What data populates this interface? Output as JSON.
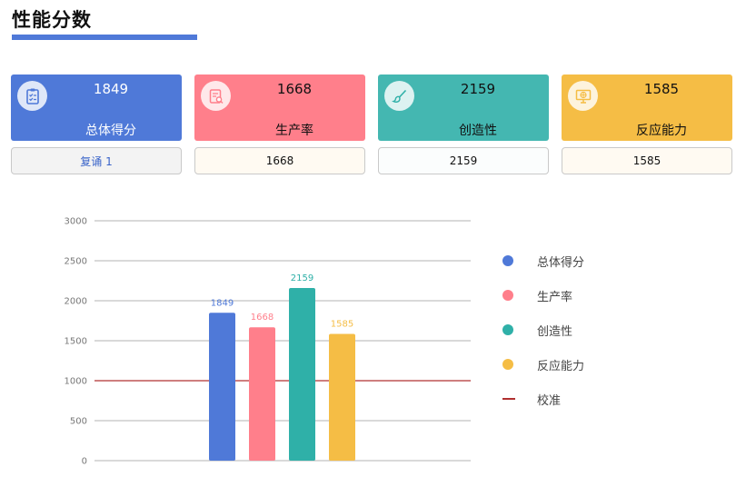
{
  "page": {
    "title": "性能分数"
  },
  "cards": [
    {
      "value": "1849",
      "label": "总体得分",
      "icon": "clipboard-check-icon",
      "bg": "#4f79d8",
      "text_color": "#ffffff",
      "icon_color": "#4f79d8"
    },
    {
      "value": "1668",
      "label": "生产率",
      "icon": "document-search-icon",
      "bg": "#ff7f8b",
      "text_color": "#111111",
      "icon_color": "#ff7f8b"
    },
    {
      "value": "2159",
      "label": "创造性",
      "icon": "brush-icon",
      "bg": "#44b7b1",
      "text_color": "#111111",
      "icon_color": "#2fb0a8"
    },
    {
      "value": "1585",
      "label": "反应能力",
      "icon": "monitor-globe-icon",
      "bg": "#f5bd45",
      "text_color": "#111111",
      "icon_color": "#f5bd45"
    }
  ],
  "buttons": [
    {
      "label": "复诵 1",
      "bg": "#f3f3f3",
      "color": "#3a64c9"
    },
    {
      "label": "1668",
      "bg": "#fffaf2",
      "color": "#111111"
    },
    {
      "label": "2159",
      "bg": "#fbfdfd",
      "color": "#111111"
    },
    {
      "label": "1585",
      "bg": "#fffaf2",
      "color": "#111111"
    }
  ],
  "chart_data": {
    "type": "bar",
    "categories": [
      "总体得分",
      "生产率",
      "创造性",
      "反应能力"
    ],
    "values": [
      1849,
      1668,
      2159,
      1585
    ],
    "colors": [
      "#4f79d8",
      "#ff7f8b",
      "#2fb0a8",
      "#f5bd45"
    ],
    "ylim": [
      0,
      3000
    ],
    "yticks": [
      0,
      500,
      1000,
      1500,
      2000,
      2500,
      3000
    ],
    "reference_line": {
      "name": "校准",
      "value": 1000,
      "color": "#b03030"
    },
    "grid": true,
    "legend_position": "right"
  }
}
